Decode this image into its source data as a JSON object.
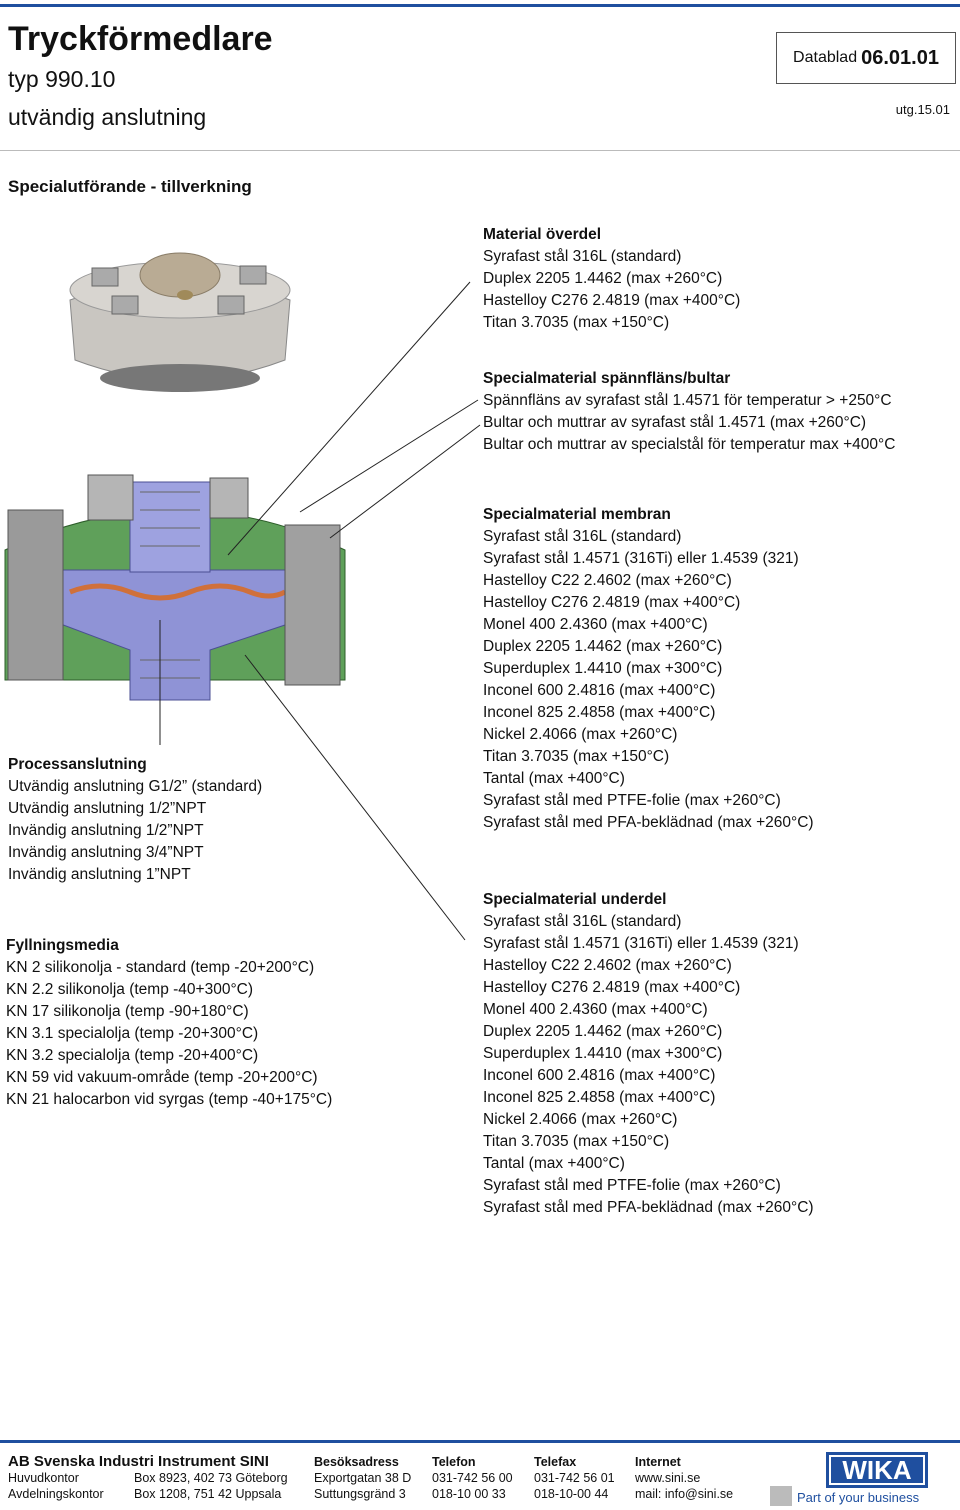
{
  "header": {
    "title": "Tryckförmedlare",
    "subtitle_1": "typ 990.10",
    "subtitle_2": "utvändig anslutning",
    "datasheet_label": "Datablad",
    "datasheet_number": "06.01.01",
    "edition": "utg.15.01"
  },
  "section_title": "Specialutförande - tillverkning",
  "blocks": {
    "material_top": {
      "heading": "Material överdel",
      "items": [
        "Syrafast stål 316L (standard)",
        "Duplex 2205 1.4462 (max +260°C)",
        "Hastelloy C276 2.4819 (max +400°C)",
        "Titan 3.7035 (max +150°C)"
      ]
    },
    "clamp": {
      "heading": "Specialmaterial spännfläns/bultar",
      "items": [
        "Spännfläns av syrafast stål 1.4571 för temperatur > +250°C",
        "Bultar och muttrar av syrafast stål 1.4571 (max +260°C)",
        "Bultar och muttrar av specialstål för temperatur max +400°C"
      ]
    },
    "membrane": {
      "heading": "Specialmaterial membran",
      "items": [
        "Syrafast stål 316L (standard)",
        "Syrafast stål 1.4571 (316Ti) eller 1.4539 (321)",
        "Hastelloy C22 2.4602 (max +260°C)",
        "Hastelloy C276 2.4819 (max +400°C)",
        "Monel 400 2.4360 (max +400°C)",
        "Duplex 2205 1.4462 (max +260°C)",
        "Superduplex 1.4410 (max +300°C)",
        "Inconel 600 2.4816 (max +400°C)",
        "Inconel 825 2.4858 (max +400°C)",
        "Nickel 2.4066 (max +260°C)",
        "Titan 3.7035 (max +150°C)",
        "Tantal (max +400°C)",
        "Syrafast stål med PTFE-folie (max +260°C)",
        "Syrafast stål med PFA-beklädnad (max +260°C)"
      ]
    },
    "process": {
      "heading": "Processanslutning",
      "items": [
        "Utvändig anslutning G1/2” (standard)",
        "Utvändig anslutning 1/2”NPT",
        "Invändig anslutning 1/2”NPT",
        "Invändig anslutning 3/4”NPT",
        "Invändig anslutning 1”NPT"
      ]
    },
    "lower": {
      "heading": "Specialmaterial underdel",
      "items": [
        "Syrafast stål 316L (standard)",
        "Syrafast stål 1.4571 (316Ti) eller 1.4539 (321)",
        "Hastelloy C22 2.4602 (max +260°C)",
        "Hastelloy C276 2.4819 (max +400°C)",
        "Monel 400 2.4360 (max +400°C)",
        "Duplex 2205 1.4462 (max +260°C)",
        "Superduplex 1.4410 (max +300°C)",
        "Inconel 600 2.4816 (max +400°C)",
        "Inconel 825 2.4858 (max +400°C)",
        "Nickel 2.4066 (max +260°C)",
        "Titan 3.7035 (max +150°C)",
        "Tantal (max +400°C)",
        "Syrafast stål med PTFE-folie (max +260°C)",
        "Syrafast stål med PFA-beklädnad (max +260°C)"
      ]
    },
    "fill": {
      "heading": "Fyllningsmedia",
      "items": [
        "KN 2 silikonolja - standard (temp -20+200°C)",
        "KN 2.2 silikonolja (temp -40+300°C)",
        "KN 17 silikonolja (temp -90+180°C)",
        "KN 3.1 specialolja (temp -20+300°C)",
        "KN 3.2 specialolja (temp -20+400°C)",
        "KN 59 vid vakuum-område (temp -20+200°C)",
        "KN 21 halocarbon vid syrgas (temp -40+175°C)"
      ]
    }
  },
  "footer": {
    "company": "AB Svenska Industri Instrument SINI",
    "headings": [
      "Besöksadress",
      "Telefon",
      "Telefax",
      "Internet"
    ],
    "rows": [
      [
        "Huvudkontor",
        "Box 8923, 402 73 Göteborg",
        "Exportgatan 38 D",
        "031-742 56 00",
        "031-742 56 01",
        "www.sini.se"
      ],
      [
        "Avdelningskontor",
        "Box 1208, 751 42 Uppsala",
        "Suttungsgränd 3",
        "018-10 00 33",
        "018-10-00 44",
        "mail: info@sini.se"
      ]
    ],
    "logo": "WIKA",
    "tagline": "Part of your business"
  }
}
